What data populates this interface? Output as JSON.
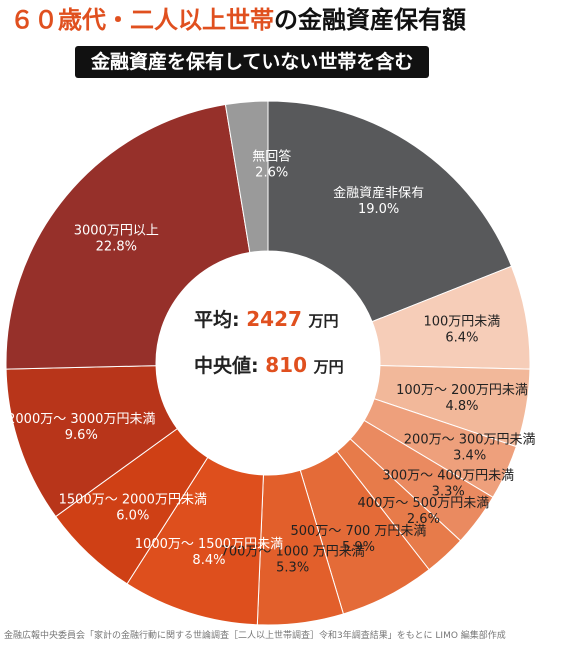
{
  "title": {
    "part1": "６０歳代・二人以上世帯",
    "part2": "の金融資産保有額"
  },
  "subtitle": "金融資産を保有していない世帯を含む",
  "center": {
    "avg_label": "平均",
    "avg_value": "2427",
    "median_label": "中央値",
    "median_value": "810",
    "unit": "万円",
    "colon": ":"
  },
  "source": "金融広報中央委員会「家計の金融行動に関する世論調査［二人以上世帯調査］令和3年調査結果」をもとに LIMO 編集部作成",
  "chart_data": {
    "type": "pie",
    "donut": true,
    "categories": [
      "金融資産非保有",
      "100万円未満",
      "100万〜 200万円未満",
      "200万〜 300万円未満",
      "300万〜 400万円未満",
      "400万〜 500万円未満",
      "500万〜 700 万円未満",
      "700万〜 1000 万円未満",
      "1000万〜 1500万円未満",
      "1500万〜 2000万円未満",
      "2000万〜 3000万円未満",
      "3000万円以上",
      "無回答"
    ],
    "values": [
      19.0,
      6.4,
      4.8,
      3.4,
      3.3,
      2.6,
      5.9,
      5.3,
      8.4,
      6.0,
      9.6,
      22.8,
      2.6
    ],
    "value_labels": [
      "19.0%",
      "6.4%",
      "4.8%",
      "3.4%",
      "3.3%",
      "2.6%",
      "5.9%",
      "5.3%",
      "8.4%",
      "6.0%",
      "9.6%",
      "22.8%",
      "2.6%"
    ],
    "colors": [
      "#58595b",
      "#f6cdb8",
      "#f2b89a",
      "#eea07c",
      "#ea8a60",
      "#e77b4a",
      "#e46b38",
      "#e25f2b",
      "#de4f1d",
      "#cf4015",
      "#b8351a",
      "#96302a",
      "#9a9a9a"
    ],
    "label_colors": [
      "#ffffff",
      "#222222",
      "#222222",
      "#222222",
      "#222222",
      "#222222",
      "#222222",
      "#222222",
      "#ffffff",
      "#ffffff",
      "#ffffff",
      "#ffffff",
      "#ffffff"
    ]
  }
}
